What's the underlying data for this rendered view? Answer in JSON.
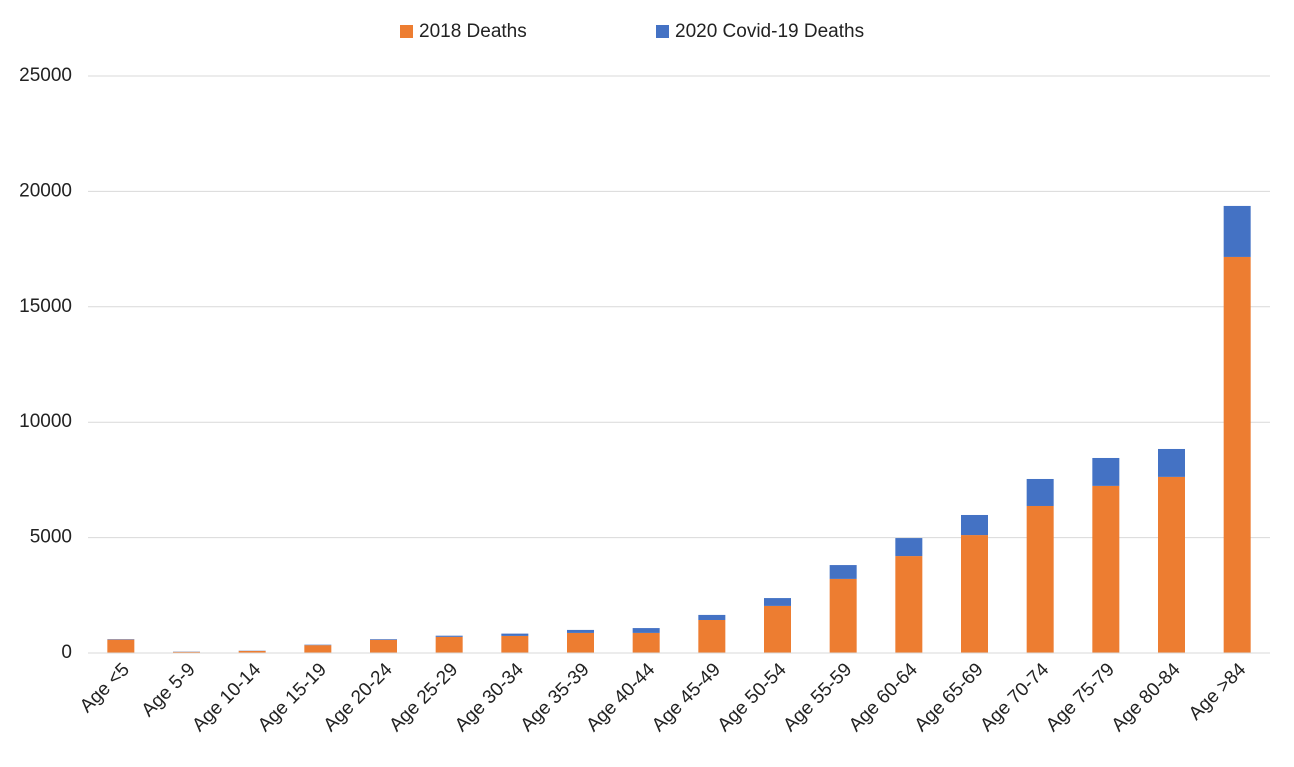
{
  "chart_data": {
    "type": "stacked_bar",
    "categories": [
      "Age <5",
      "Age 5-9",
      "Age 10-14",
      "Age 15-19",
      "Age 20-24",
      "Age 25-29",
      "Age 30-34",
      "Age 35-39",
      "Age 40-44",
      "Age 45-49",
      "Age 50-54",
      "Age 55-59",
      "Age 60-64",
      "Age 65-69",
      "Age 70-74",
      "Age 75-79",
      "Age 80-84",
      "Age >84"
    ],
    "series": [
      {
        "name": "2018 Deaths",
        "color": "#ed7d31",
        "values": [
          580,
          50,
          90,
          340,
          570,
          700,
          740,
          870,
          870,
          1430,
          2040,
          3210,
          4200,
          5110,
          6370,
          7240,
          7630,
          17160
        ]
      },
      {
        "name": "2020 Covid-19 Deaths",
        "color": "#4472c4",
        "values": [
          20,
          10,
          10,
          20,
          30,
          50,
          100,
          130,
          210,
          220,
          340,
          600,
          780,
          870,
          1170,
          1210,
          1210,
          2210
        ]
      }
    ],
    "ylim": [
      0,
      25000
    ],
    "yticks": [
      0,
      5000,
      10000,
      15000,
      20000,
      25000
    ],
    "grid": true,
    "legend": "top"
  }
}
